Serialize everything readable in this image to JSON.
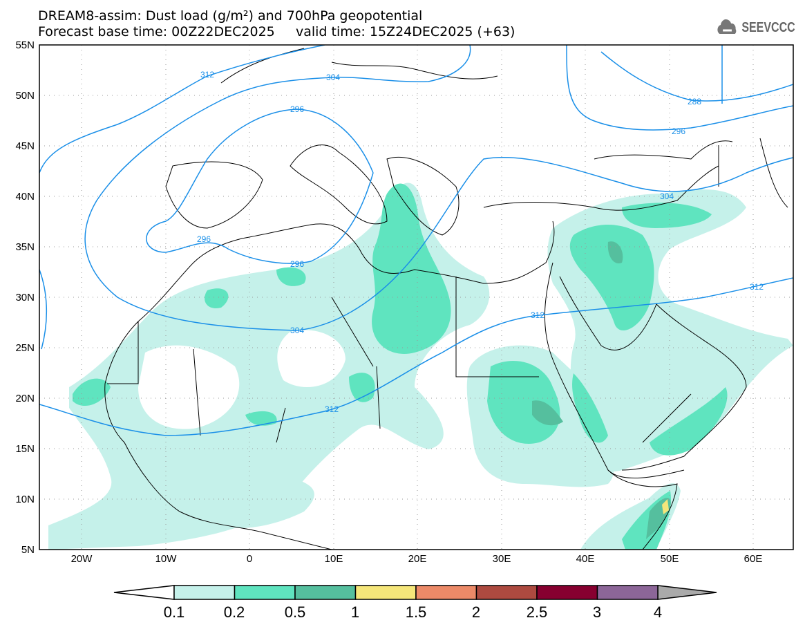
{
  "header": {
    "title": "DREAM8-assim: Dust load (g/m²) and 700hPa geopotential",
    "subtitle": "Forecast base time: 00Z22DEC2025     valid time: 15Z24DEC2025 (+63)",
    "logo": "SEEVCCC",
    "logo_icon": "cloud-icon"
  },
  "axes": {
    "lat_labels": [
      "55N",
      "50N",
      "45N",
      "40N",
      "35N",
      "30N",
      "25N",
      "20N",
      "15N",
      "10N",
      "5N"
    ],
    "lon_labels": [
      "20W",
      "10W",
      "0",
      "10E",
      "20E",
      "30E",
      "40E",
      "50E",
      "60E"
    ]
  },
  "contours": {
    "labels": [
      "312",
      "304",
      "296",
      "288",
      "296",
      "304",
      "296",
      "296",
      "304",
      "312",
      "312",
      "312"
    ]
  },
  "colorbar": {
    "ticks": [
      "0.1",
      "0.2",
      "0.5",
      "1",
      "1.5",
      "2",
      "2.5",
      "3",
      "4"
    ],
    "colors": [
      "#c5f1ea",
      "#5fe4bf",
      "#55bf9e",
      "#f5e67a",
      "#ec8a68",
      "#ad4a40",
      "#870030",
      "#8c6698"
    ],
    "under_color": "#ffffff",
    "over_color": "#aaaaaa"
  },
  "colors": {
    "contour": "#1a8fe8",
    "coast": "#000000"
  }
}
